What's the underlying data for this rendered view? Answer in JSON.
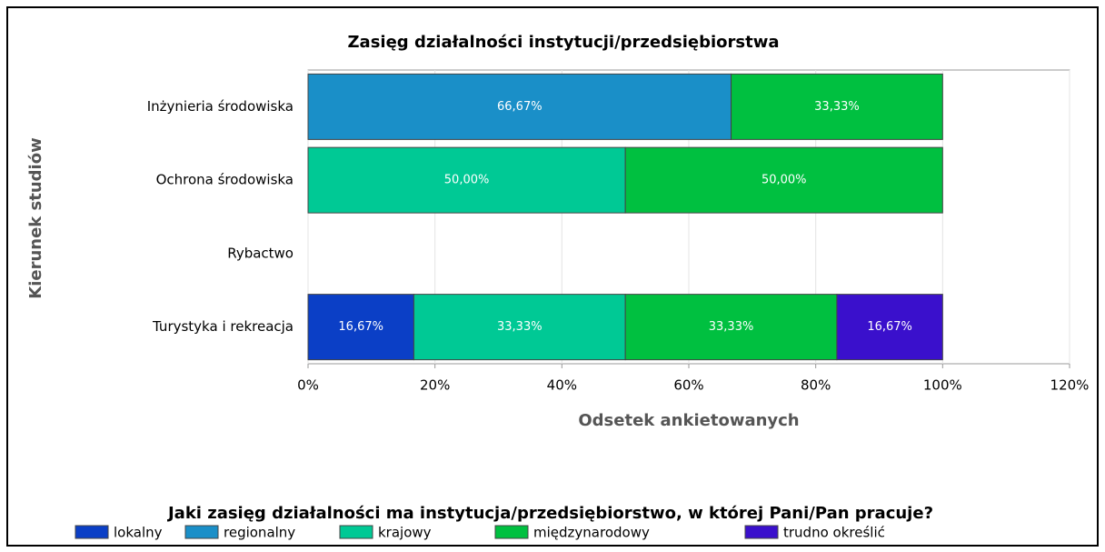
{
  "chart_data": {
    "type": "stacked_barh",
    "title": "Zasięg działalności instytucji/przedsiębiorstwa",
    "xlabel": "Odsetek ankietowanych",
    "ylabel": "Kierunek studiów",
    "legend_title": "Jaki zasięg działalności ma instytucja/przedsiębiorstwo, w której Pani/Pan pracuje?",
    "categories": [
      "Inżynieria środowiska",
      "Ochrona środowiska",
      "Rybactwo",
      "Turystyka i rekreacja"
    ],
    "series": [
      {
        "name": "lokalny",
        "color": "#0b3fc6",
        "values": [
          null,
          null,
          null,
          16.67
        ],
        "value_labels": [
          null,
          null,
          null,
          "16,67%"
        ]
      },
      {
        "name": "regionalny",
        "color": "#1a8fc8",
        "values": [
          66.67,
          null,
          null,
          null
        ],
        "value_labels": [
          "66,67%",
          null,
          null,
          null
        ]
      },
      {
        "name": "krajowy",
        "color": "#00c995",
        "values": [
          null,
          50,
          null,
          33.33
        ],
        "value_labels": [
          null,
          "50,00%",
          null,
          "33,33%"
        ]
      },
      {
        "name": "międzynarodowy",
        "color": "#00c040",
        "values": [
          33.33,
          50,
          null,
          33.33
        ],
        "value_labels": [
          "33,33%",
          "50,00%",
          null,
          "33,33%"
        ]
      },
      {
        "name": "trudno określić",
        "color": "#3a10cc",
        "values": [
          null,
          null,
          null,
          16.67
        ],
        "value_labels": [
          null,
          null,
          null,
          "16,67%"
        ]
      }
    ],
    "xlim": [
      0,
      120
    ],
    "xticks": [
      {
        "value": 0,
        "label": "0%"
      },
      {
        "value": 20,
        "label": "20%"
      },
      {
        "value": 40,
        "label": "40%"
      },
      {
        "value": 60,
        "label": "60%"
      },
      {
        "value": 80,
        "label": "80%"
      },
      {
        "value": 100,
        "label": "100%"
      },
      {
        "value": 120,
        "label": "120%"
      }
    ],
    "grid": true,
    "legend": "bottom"
  }
}
